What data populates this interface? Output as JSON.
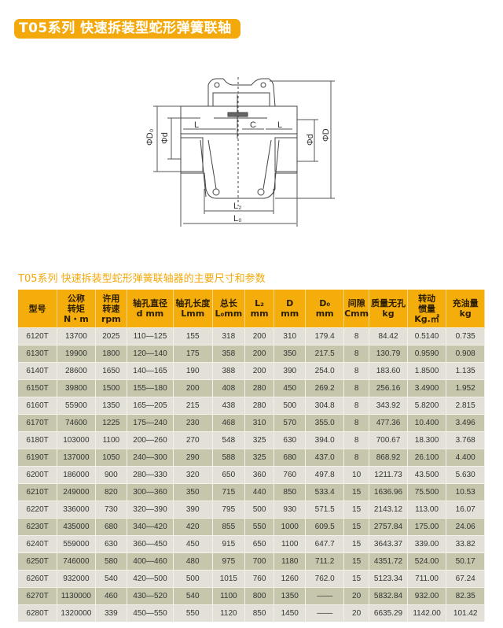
{
  "title": "T05系列 快速拆装型蛇形弹簧联轴器",
  "drawing": {
    "labels": {
      "D0": "ΦD₀",
      "d_left": "Φd",
      "L_left": "L",
      "C": "C",
      "L_right": "L",
      "d_right": "Φd",
      "D": "ΦD",
      "L2": "L₂",
      "L0": "L₀"
    }
  },
  "subtitle": "T05系列 快速拆装型蛇形弹簧联轴器的主要尺寸和参数",
  "table": {
    "headers": [
      [
        "型号"
      ],
      [
        "公称",
        "转矩",
        "N・m"
      ],
      [
        "许用",
        "转速",
        "rpm"
      ],
      [
        "轴孔直径",
        "d mm"
      ],
      [
        "轴孔长度",
        "Lmm"
      ],
      [
        "总长",
        "L₀mm"
      ],
      [
        "L₂",
        "mm"
      ],
      [
        "D",
        "mm"
      ],
      [
        "D₀",
        "mm"
      ],
      [
        "间隙",
        "Cmm"
      ],
      [
        "质量无孔",
        "kg"
      ],
      [
        "转动",
        "惯量",
        "Kg.㎡"
      ],
      [
        "充油量",
        "kg"
      ]
    ],
    "rows": [
      [
        "6120T",
        "13700",
        "2025",
        "110—125",
        "155",
        "318",
        "200",
        "310",
        "179.4",
        "8",
        "84.42",
        "0.5140",
        "0.735"
      ],
      [
        "6130T",
        "19900",
        "1800",
        "120—140",
        "175",
        "358",
        "200",
        "350",
        "217.5",
        "8",
        "130.79",
        "0.9590",
        "0.908"
      ],
      [
        "6140T",
        "28600",
        "1650",
        "140—165",
        "190",
        "388",
        "200",
        "390",
        "254.0",
        "8",
        "183.60",
        "1.8500",
        "1.135"
      ],
      [
        "6150T",
        "39800",
        "1500",
        "155—180",
        "200",
        "408",
        "280",
        "450",
        "269.2",
        "8",
        "256.16",
        "3.4900",
        "1.952"
      ],
      [
        "6160T",
        "55900",
        "1350",
        "165—205",
        "215",
        "438",
        "280",
        "500",
        "304.8",
        "8",
        "343.92",
        "5.8200",
        "2.815"
      ],
      [
        "6170T",
        "74600",
        "1225",
        "175—240",
        "230",
        "468",
        "310",
        "570",
        "355.0",
        "8",
        "477.36",
        "10.400",
        "3.496"
      ],
      [
        "6180T",
        "103000",
        "1100",
        "200—260",
        "270",
        "548",
        "325",
        "630",
        "394.0",
        "8",
        "700.67",
        "18.300",
        "3.768"
      ],
      [
        "6190T",
        "137000",
        "1050",
        "240—300",
        "290",
        "588",
        "325",
        "680",
        "437.0",
        "8",
        "868.92",
        "26.100",
        "4.400"
      ],
      [
        "6200T",
        "186000",
        "900",
        "280—330",
        "320",
        "650",
        "360",
        "760",
        "497.8",
        "10",
        "1211.73",
        "43.500",
        "5.630"
      ],
      [
        "6210T",
        "249000",
        "820",
        "300—360",
        "350",
        "715",
        "440",
        "850",
        "533.4",
        "15",
        "1636.96",
        "75.500",
        "10.53"
      ],
      [
        "6220T",
        "336000",
        "730",
        "320—390",
        "390",
        "795",
        "500",
        "930",
        "571.5",
        "15",
        "2143.12",
        "113.00",
        "16.07"
      ],
      [
        "6230T",
        "435000",
        "680",
        "340—420",
        "420",
        "855",
        "550",
        "1000",
        "609.5",
        "15",
        "2757.84",
        "175.00",
        "24.06"
      ],
      [
        "6240T",
        "559000",
        "630",
        "360—450",
        "450",
        "915",
        "650",
        "1100",
        "647.7",
        "15",
        "3643.37",
        "339.00",
        "33.82"
      ],
      [
        "6250T",
        "746000",
        "580",
        "400—460",
        "480",
        "975",
        "700",
        "1180",
        "711.2",
        "15",
        "4351.72",
        "524.00",
        "50.17"
      ],
      [
        "6260T",
        "932000",
        "540",
        "420—500",
        "500",
        "1015",
        "760",
        "1260",
        "762.0",
        "15",
        "5123.34",
        "711.00",
        "67.24"
      ],
      [
        "6270T",
        "1130000",
        "460",
        "430—520",
        "540",
        "1100",
        "800",
        "1350",
        "——",
        "20",
        "5832.84",
        "932.00",
        "82.35"
      ],
      [
        "6280T",
        "1320000",
        "339",
        "450—550",
        "550",
        "1120",
        "850",
        "1450",
        "——",
        "20",
        "6635.29",
        "1142.00",
        "101.42"
      ]
    ]
  }
}
